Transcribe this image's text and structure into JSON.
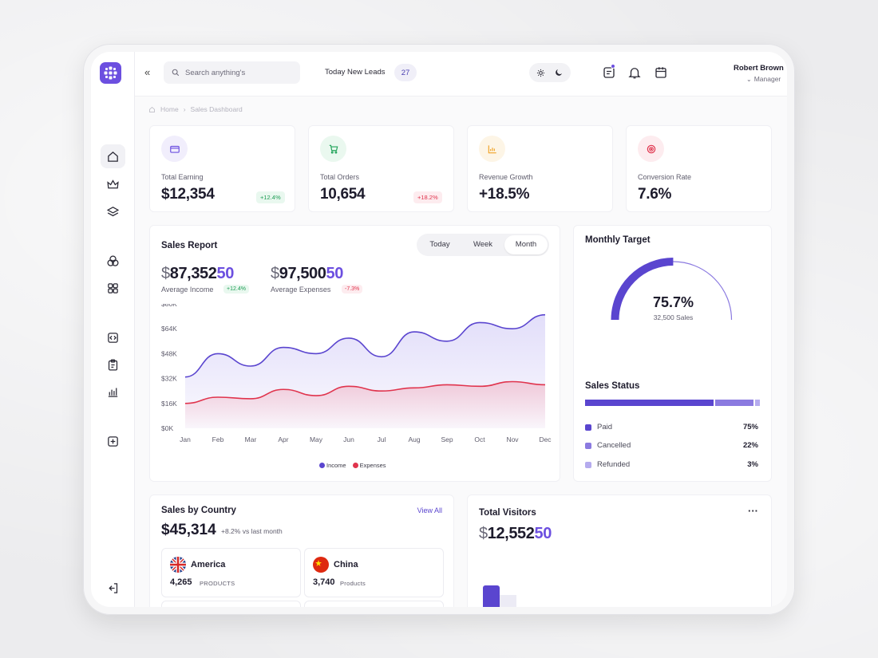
{
  "header": {
    "search_placeholder": "Search anything's",
    "leads_label": "Today New Leads",
    "leads_count": "27",
    "user_name": "Robert Brown",
    "user_role": "Manager"
  },
  "breadcrumb": {
    "home": "Home",
    "current": "Sales Dashboard"
  },
  "stats": [
    {
      "label": "Total Earning",
      "value": "$12,354",
      "badge": "+12.4%",
      "trend": "up",
      "icon": "wallet-icon",
      "color": "#6c4fe0"
    },
    {
      "label": "Total Orders",
      "value": "10,654",
      "badge": "+18.2%",
      "trend": "down",
      "icon": "cart-icon",
      "color": "#22a35a"
    },
    {
      "label": "Revenue Growth",
      "value": "+18.5%",
      "icon": "bar-chart-icon",
      "color": "#f0a429"
    },
    {
      "label": "Conversion Rate",
      "value": "7.6%",
      "icon": "target-icon",
      "color": "#e0344d"
    }
  ],
  "sales_report": {
    "title": "Sales Report",
    "tabs": [
      "Today",
      "Week",
      "Month"
    ],
    "active_tab": "Month",
    "income": {
      "currency": "$",
      "int": "87,352",
      "dec": "50",
      "label": "Average Income",
      "badge": "+12.4%"
    },
    "expenses": {
      "currency": "$",
      "int": "97,500",
      "dec": "50",
      "label": "Average Expenses",
      "badge": "-7.3%"
    }
  },
  "chart_data": {
    "type": "area",
    "title": "Sales Report",
    "categories": [
      "Jan",
      "Feb",
      "Mar",
      "Apr",
      "May",
      "Jun",
      "Jul",
      "Aug",
      "Sep",
      "Oct",
      "Nov",
      "Dec"
    ],
    "y_ticks": [
      "$80K",
      "$64K",
      "$48K",
      "$32K",
      "$16K",
      "$0K"
    ],
    "ylim": [
      0,
      80000
    ],
    "series": [
      {
        "name": "Income",
        "color": "#5a45cf",
        "values": [
          33000,
          48000,
          40000,
          52000,
          48000,
          58000,
          46000,
          62000,
          56000,
          68000,
          64000,
          73000
        ]
      },
      {
        "name": "Expenses",
        "color": "#e0344d",
        "values": [
          16000,
          20000,
          19000,
          25000,
          21000,
          27000,
          24000,
          26000,
          28000,
          27000,
          30000,
          28000
        ]
      }
    ]
  },
  "monthly_target": {
    "title": "Monthly Target",
    "percent_label": "75.7%",
    "percent": 0.757,
    "sales_label": "32,500 Sales"
  },
  "sales_status": {
    "title": "Sales Status",
    "items": [
      {
        "label": "Paid",
        "pct": "75%",
        "value": 75,
        "color": "#5a45cf"
      },
      {
        "label": "Cancelled",
        "pct": "22%",
        "value": 22,
        "color": "#8b7ae0"
      },
      {
        "label": "Refunded",
        "pct": "3%",
        "value": 3,
        "color": "#b5abee"
      }
    ]
  },
  "sales_by_country": {
    "title": "Sales by Country",
    "view_all": "View All",
    "total": "$45,314",
    "change": "+8.2% vs last month",
    "countries": [
      {
        "name": "America",
        "count": "4,265",
        "unit": "PRODUCTS"
      },
      {
        "name": "China",
        "count": "3,740",
        "unit": "Products"
      }
    ]
  },
  "total_visitors": {
    "title": "Total Visitors",
    "currency": "$",
    "int": "12,552",
    "dec": "50",
    "more": "···"
  }
}
